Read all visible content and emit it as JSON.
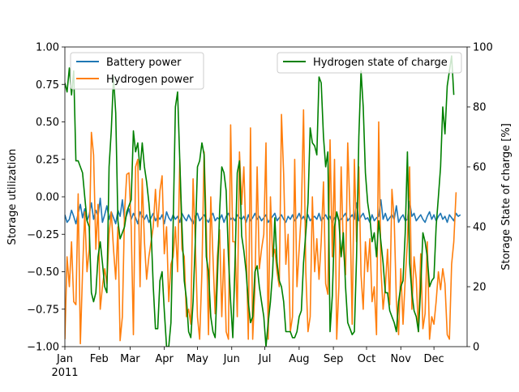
{
  "chart_data": {
    "type": "line",
    "x_axis": {
      "ticks": [
        {
          "label": "Jan",
          "day": 0
        },
        {
          "label": "Feb",
          "day": 31
        },
        {
          "label": "Mar",
          "day": 59
        },
        {
          "label": "Apr",
          "day": 90
        },
        {
          "label": "May",
          "day": 120
        },
        {
          "label": "Jun",
          "day": 151
        },
        {
          "label": "Jul",
          "day": 181
        },
        {
          "label": "Aug",
          "day": 212
        },
        {
          "label": "Sep",
          "day": 243
        },
        {
          "label": "Oct",
          "day": 273
        },
        {
          "label": "Nov",
          "day": 304
        },
        {
          "label": "Dec",
          "day": 334
        }
      ],
      "year_label": "2011",
      "range": [
        0,
        364
      ]
    },
    "y_left": {
      "label": "Storage utilization",
      "ylim": [
        -1.0,
        1.0
      ],
      "ticks": [
        "1.00",
        "0.75",
        "0.50",
        "0.25",
        "0.00",
        "−0.25",
        "−0.50",
        "−0.75",
        "−1.00"
      ],
      "tick_values": [
        1.0,
        0.75,
        0.5,
        0.25,
        0.0,
        -0.25,
        -0.5,
        -0.75,
        -1.0
      ]
    },
    "y_right": {
      "label": "Storage State of charge [%]",
      "ylim": [
        0,
        100
      ],
      "ticks": [
        "100",
        "80",
        "60",
        "40",
        "20",
        "0"
      ],
      "tick_values": [
        100,
        80,
        60,
        40,
        20,
        0
      ]
    },
    "legend_left": {
      "placement": "upper-left"
    },
    "legend_right": {
      "placement": "upper-right"
    },
    "grid": false,
    "series": [
      {
        "name": "Battery power",
        "axis": "left",
        "color": "#1f77b4",
        "x_step_days": 2,
        "values": [
          -0.12,
          -0.17,
          -0.15,
          -0.09,
          -0.13,
          -0.18,
          -0.11,
          -0.05,
          -0.14,
          -0.08,
          -0.16,
          -0.12,
          -0.04,
          -0.15,
          -0.09,
          -0.13,
          -0.01,
          -0.17,
          -0.12,
          -0.06,
          -0.15,
          -0.1,
          -0.14,
          -0.18,
          -0.09,
          -0.13,
          -0.02,
          -0.16,
          -0.12,
          -0.08,
          -0.15,
          -0.11,
          -0.14,
          -0.18,
          -0.1,
          -0.13,
          -0.15,
          -0.12,
          -0.17,
          -0.14,
          -0.11,
          -0.16,
          -0.13,
          -0.15,
          -0.12,
          -0.18,
          -0.1,
          -0.14,
          -0.16,
          -0.12,
          -0.15,
          -0.13,
          -0.17,
          -0.11,
          -0.14,
          -0.16,
          -0.12,
          -0.15,
          -0.18,
          -0.13,
          -0.11,
          -0.16,
          -0.14,
          -0.12,
          -0.15,
          -0.17,
          -0.13,
          -0.11,
          -0.16,
          -0.14,
          -0.15,
          -0.12,
          -0.17,
          -0.13,
          -0.11,
          -0.15,
          -0.14,
          -0.16,
          -0.12,
          -0.14,
          -0.15,
          -0.13,
          -0.17,
          -0.12,
          -0.16,
          -0.14,
          -0.11,
          -0.15,
          -0.13,
          -0.16,
          -0.14,
          -0.12,
          -0.17,
          -0.15,
          -0.13,
          -0.11,
          -0.16,
          -0.14,
          -0.12,
          -0.15,
          -0.17,
          -0.13,
          -0.15,
          -0.12,
          -0.16,
          -0.14,
          -0.11,
          -0.15,
          -0.13,
          -0.17,
          -0.12,
          -0.16,
          -0.14,
          -0.13,
          -0.15,
          -0.11,
          -0.16,
          -0.14,
          -0.12,
          -0.15,
          -0.13,
          -0.17,
          -0.14,
          -0.12,
          -0.16,
          -0.15,
          -0.13,
          -0.11,
          -0.16,
          -0.14,
          -0.12,
          -0.15,
          -0.04,
          -0.16,
          -0.13,
          -0.11,
          -0.15,
          -0.14,
          -0.17,
          -0.12,
          -0.16,
          -0.14,
          -0.13,
          -0.02,
          -0.15,
          -0.11,
          -0.16,
          -0.14,
          -0.12,
          -0.15,
          -0.06,
          -0.17,
          -0.14,
          -0.12,
          -0.16,
          -0.15,
          -0.03,
          -0.13,
          -0.11,
          -0.16,
          -0.14,
          -0.12,
          -0.15,
          -0.17,
          -0.13,
          -0.1,
          -0.15,
          -0.12,
          -0.16,
          -0.13,
          -0.11,
          -0.15,
          -0.13,
          -0.17,
          -0.12,
          -0.14,
          -0.16,
          -0.11,
          -0.13,
          -0.12
        ]
      },
      {
        "name": "Hydrogen power",
        "axis": "left",
        "color": "#ff7f0e",
        "x_step_days": 2,
        "values": [
          -0.95,
          -0.4,
          -0.6,
          -0.3,
          -0.7,
          -0.72,
          0.02,
          -0.98,
          -0.5,
          -0.1,
          -0.5,
          -0.35,
          0.43,
          0.28,
          -0.35,
          -0.05,
          -0.75,
          -0.6,
          -0.48,
          -0.58,
          -0.25,
          -0.1,
          -0.35,
          -0.55,
          -0.2,
          -0.96,
          -0.8,
          -0.1,
          0.15,
          0.16,
          -0.2,
          -0.92,
          0.2,
          0.25,
          -0.6,
          0.12,
          -0.3,
          -0.55,
          -0.4,
          -0.3,
          -0.2,
          0.05,
          -0.2,
          0.04,
          0.14,
          -0.38,
          -0.2,
          -0.7,
          -0.45,
          -0.4,
          -0.2,
          -0.5,
          0.25,
          -0.35,
          -0.4,
          -0.8,
          -0.75,
          -0.85,
          0.12,
          -0.3,
          -0.8,
          -0.95,
          -0.5,
          0.3,
          -0.2,
          -0.92,
          0.0,
          -0.4,
          -0.78,
          -0.4,
          -0.22,
          -0.8,
          -0.35,
          -0.9,
          -0.95,
          0.48,
          -0.3,
          -0.3,
          -0.8,
          0.3,
          -0.05,
          0.2,
          -0.3,
          -0.95,
          0.46,
          -0.95,
          -0.6,
          0.2,
          -0.48,
          -0.35,
          -0.25,
          0.36,
          -0.95,
          0.0,
          -0.4,
          -0.35,
          -0.5,
          -0.6,
          0.55,
          0.15,
          -0.45,
          -0.25,
          -0.9,
          -0.8,
          0.25,
          -0.6,
          -0.35,
          -0.1,
          0.58,
          -0.5,
          -0.9,
          -0.8,
          0.0,
          -0.5,
          -0.28,
          -0.55,
          -0.3,
          0.1,
          -0.58,
          -0.65,
          0.38,
          -0.4,
          0.25,
          -0.95,
          -0.6,
          0.2,
          -0.35,
          -0.52,
          0.36,
          -0.1,
          -0.85,
          0.25,
          -0.3,
          0.2,
          -0.52,
          -0.75,
          -0.3,
          -0.5,
          -0.28,
          -0.7,
          -0.6,
          -0.92,
          0.5,
          -0.48,
          -0.75,
          -0.6,
          -0.35,
          -0.72,
          0.05,
          -0.15,
          -0.7,
          -0.92,
          -0.48,
          -0.85,
          -0.55,
          -0.3,
          0.2,
          -0.75,
          -0.4,
          -0.55,
          -0.9,
          -0.38,
          -0.88,
          -0.78,
          -0.3,
          -0.95,
          -0.8,
          -0.85,
          -0.7,
          -0.5,
          -0.62,
          -0.48,
          -0.58,
          -0.92,
          -0.95,
          -0.45,
          -0.3,
          0.03
        ]
      },
      {
        "name": "Hydrogen state of charge",
        "axis": "right",
        "color": "#008000",
        "x_step_days": 2,
        "values": [
          88,
          85,
          93,
          84,
          92,
          62,
          62,
          60,
          58,
          50,
          42,
          40,
          18,
          15,
          18,
          30,
          35,
          28,
          20,
          18,
          60,
          72,
          90,
          78,
          42,
          36,
          38,
          40,
          45,
          47,
          49,
          72,
          65,
          68,
          59,
          68,
          60,
          55,
          48,
          39,
          20,
          6,
          6,
          22,
          25,
          12,
          0,
          0,
          8,
          40,
          80,
          85,
          62,
          40,
          22,
          16,
          5,
          3,
          15,
          35,
          60,
          62,
          68,
          64,
          30,
          25,
          10,
          5,
          3,
          22,
          45,
          60,
          58,
          52,
          30,
          15,
          3,
          28,
          58,
          62,
          37,
          32,
          25,
          15,
          8,
          10,
          25,
          27,
          20,
          15,
          10,
          0,
          8,
          15,
          25,
          43,
          28,
          22,
          20,
          15,
          5,
          5,
          5,
          3,
          3,
          5,
          10,
          12,
          28,
          38,
          48,
          73,
          68,
          67,
          64,
          90,
          88,
          70,
          60,
          65,
          5,
          17,
          40,
          45,
          42,
          30,
          38,
          20,
          8,
          6,
          4,
          5,
          30,
          70,
          92,
          80,
          58,
          48,
          43,
          35,
          38,
          30,
          42,
          35,
          28,
          18,
          18,
          12,
          10,
          8,
          5,
          15,
          20,
          22,
          38,
          65,
          28,
          18,
          12,
          10,
          5,
          20,
          38,
          35,
          30,
          20,
          22,
          23,
          40,
          50,
          60,
          80,
          71,
          87,
          92,
          97,
          84
        ]
      }
    ]
  }
}
